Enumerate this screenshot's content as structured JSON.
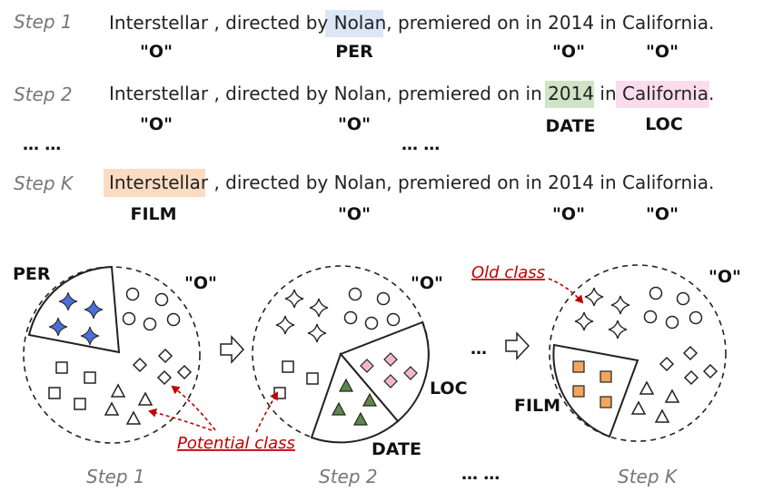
{
  "steps": {
    "step1": "Step 1",
    "step2": "Step 2",
    "stepk": "Step K"
  },
  "sentence": {
    "part1": "Interstellar , directed by ",
    "nolan": "Nolan",
    "part2": ",  premiered on in ",
    "year": "2014",
    "part3": " in ",
    "california": "California",
    "period": ".",
    "interstellar": "Interstellar",
    "rest_k": " , directed by Nolan,  premiered on in 2014 in California.",
    "full_after_nolan": ",  premiered on in 2014 in California.",
    "prefix_step2": "Interstellar , directed by Nolan,  premiered on in "
  },
  "labels": {
    "o": "\"O\"",
    "per": "PER",
    "date": "DATE",
    "loc": "LOC",
    "film": "FILM",
    "ellipsis": "… …"
  },
  "annotations": {
    "old_class": "Old class",
    "potential_class": "Potential class"
  },
  "colors": {
    "per_highlight": "#dbe6f7",
    "date_highlight": "#cfe3c6",
    "loc_highlight": "#fadcec",
    "film_highlight": "#fbdcc2",
    "per_star": "#4a6fd8",
    "date_tri": "#5a8a4a",
    "loc_diamond": "#f2b7d0",
    "film_square": "#f2a65c",
    "arrow": "#c00000"
  }
}
